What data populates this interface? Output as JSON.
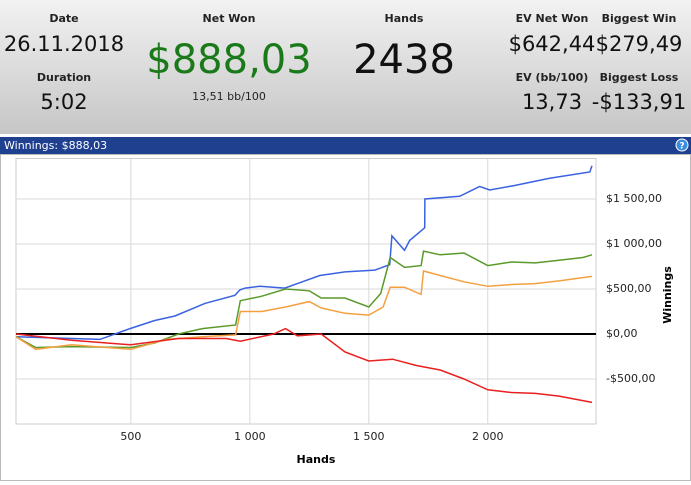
{
  "header": {
    "date": {
      "label": "Date",
      "value": "26.11.2018"
    },
    "duration": {
      "label": "Duration",
      "value": "5:02"
    },
    "net_won": {
      "label": "Net Won",
      "value": "$888,03",
      "sub": "13,51 bb/100"
    },
    "hands": {
      "label": "Hands",
      "value": "2438"
    },
    "ev_net_won": {
      "label": "EV Net Won",
      "value": "$642,44"
    },
    "biggest_win": {
      "label": "Biggest Win",
      "value": "$279,49"
    },
    "ev_bb": {
      "label": "EV (bb/100)",
      "value": "13,73"
    },
    "biggest_loss": {
      "label": "Biggest Loss",
      "value": "-$133,91"
    }
  },
  "panel": {
    "title": "Winnings: $888,03",
    "help": "?"
  },
  "chart_data": {
    "type": "line",
    "xlabel": "Hands",
    "ylabel": "Winnings",
    "xlim": [
      17,
      2455
    ],
    "ylim": [
      -1000,
      1950
    ],
    "xticks": [
      500,
      {
        "value": 1000,
        "label": "1 000"
      },
      {
        "value": 1500,
        "label": "1 500"
      },
      {
        "value": 2000,
        "label": "2 000"
      }
    ],
    "yticks": [
      {
        "value": -500,
        "label": "-$500,00"
      },
      {
        "value": 0,
        "label": "$0,00"
      },
      {
        "value": 500,
        "label": "$500,00"
      },
      {
        "value": 1000,
        "label": "$1 000,00"
      },
      {
        "value": 1500,
        "label": "$1 500,00"
      }
    ],
    "grid": true,
    "series": [
      {
        "color": "#3a62e0",
        "x": [
          17,
          370,
          496,
          600,
          685,
          811,
          937,
          958,
          980,
          1042,
          1147,
          1210,
          1294,
          1400,
          1525,
          1588,
          1597,
          1650,
          1672,
          1735,
          1736,
          1882,
          1966,
          2008,
          2113,
          2260,
          2429,
          2438
        ],
        "values": [
          -30,
          -60,
          60,
          150,
          200,
          340,
          430,
          490,
          510,
          530,
          510,
          570,
          650,
          690,
          710,
          770,
          1090,
          930,
          1040,
          1180,
          1500,
          1530,
          1640,
          1600,
          1650,
          1730,
          1800,
          1870
        ]
      },
      {
        "color": "#5a9a2a",
        "x": [
          17,
          100,
          250,
          500,
          600,
          700,
          800,
          940,
          960,
          1050,
          1150,
          1250,
          1300,
          1400,
          1500,
          1550,
          1590,
          1650,
          1720,
          1730,
          1800,
          1900,
          2000,
          2100,
          2200,
          2300,
          2400,
          2438
        ],
        "values": [
          -30,
          -150,
          -140,
          -150,
          -100,
          0,
          60,
          100,
          370,
          420,
          500,
          480,
          400,
          400,
          300,
          450,
          850,
          740,
          760,
          920,
          880,
          900,
          760,
          800,
          790,
          820,
          850,
          880
        ]
      },
      {
        "color": "#f4a040",
        "x": [
          17,
          100,
          250,
          500,
          650,
          800,
          940,
          960,
          1050,
          1150,
          1250,
          1300,
          1400,
          1500,
          1560,
          1590,
          1650,
          1720,
          1730,
          1800,
          1900,
          2000,
          2100,
          2200,
          2300,
          2438
        ],
        "values": [
          -30,
          -170,
          -120,
          -170,
          -60,
          -30,
          -10,
          250,
          250,
          300,
          360,
          290,
          230,
          210,
          300,
          520,
          520,
          440,
          700,
          650,
          580,
          530,
          550,
          560,
          590,
          640
        ]
      },
      {
        "color": "#e82020",
        "x": [
          17,
          250,
          500,
          700,
          900,
          960,
          1100,
          1150,
          1200,
          1300,
          1400,
          1500,
          1600,
          1700,
          1800,
          1900,
          2000,
          2100,
          2200,
          2300,
          2438
        ],
        "values": [
          0,
          -70,
          -120,
          -50,
          -50,
          -80,
          0,
          60,
          -20,
          0,
          -200,
          -300,
          -280,
          -350,
          -400,
          -500,
          -620,
          -650,
          -660,
          -690,
          -760
        ]
      }
    ]
  }
}
